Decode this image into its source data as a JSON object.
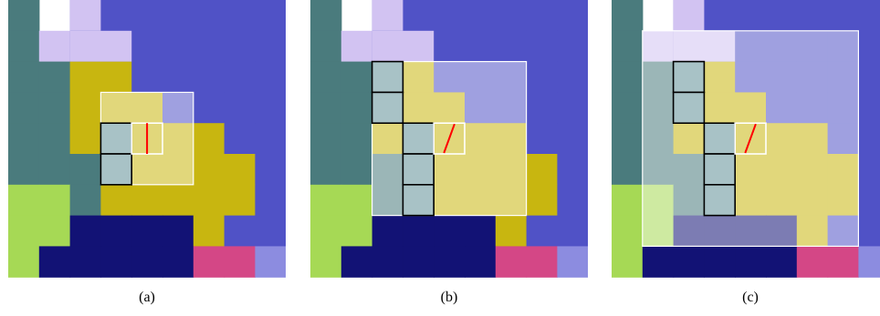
{
  "captions": [
    "(a)",
    "(b)",
    "(c)"
  ],
  "colors": {
    "teal": "#4a7b7d",
    "lavender": "#d2c3f2",
    "blue": "#5052c6",
    "olive": "#c8b610",
    "green": "#a6d955",
    "navy": "#121275",
    "magenta": "#d44786",
    "periwinkle": "#8c8ce0",
    "highlight": "#ffffff",
    "selected_cell": "#a8c2c6",
    "edge_line": "#ff0000",
    "outline": "#000000"
  }
}
